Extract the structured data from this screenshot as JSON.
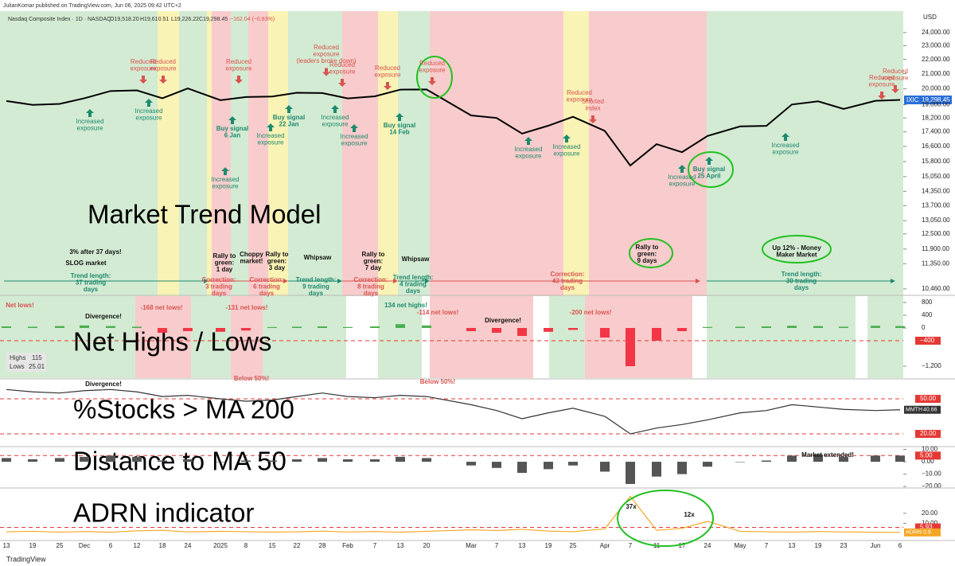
{
  "header": {
    "publisher": "JulianKomar published on TradingView.com, Jun 06, 2025 09:42 UTC+2",
    "symbol": "Nasdaq Composite Index · 1D · NASDAQ",
    "open": "O19,518.20",
    "high": "H19,610.51",
    "low": "L19,226.22",
    "close": "C19,298.45",
    "change": "−162.04 (−0.83%)",
    "currency": "USD",
    "ticker": "IXIC",
    "last": "19,298.45"
  },
  "footer": "TradingView",
  "highs_lows_box": {
    "highs_label": "Highs",
    "highs": "115",
    "lows_label": "Lows",
    "lows": "25.01"
  },
  "chart_data": [
    {
      "type": "line",
      "title": "Market Trend Model",
      "color": "#000000",
      "log_scale": true,
      "categories": [
        "13",
        "19",
        "25",
        "Dec",
        "6",
        "12",
        "18",
        "24",
        "2025",
        "8",
        "15",
        "22",
        "28",
        "Feb",
        "7",
        "13",
        "20",
        "Mar",
        "7",
        "13",
        "19",
        "25",
        "Apr",
        "7",
        "11",
        "17",
        "24",
        "May",
        "7",
        "13",
        "19",
        "23",
        "Jun",
        "6"
      ],
      "values": [
        19230,
        18990,
        19050,
        19400,
        19860,
        19900,
        19400,
        20030,
        19280,
        19480,
        19510,
        19750,
        19730,
        19390,
        19520,
        19950,
        19960,
        18350,
        18200,
        17300,
        17750,
        18270,
        17450,
        15600,
        16720,
        16290,
        17170,
        17710,
        17740,
        19010,
        19210,
        18740,
        19240,
        19298
      ],
      "ylim": [
        10270,
        25660
      ],
      "yticks": [
        {
          "value": 24000,
          "label": "24,000.00"
        },
        {
          "value": 23000,
          "label": "23,000.00"
        },
        {
          "value": 22000,
          "label": "22,000.00"
        },
        {
          "value": 21000,
          "label": "21,000.00"
        },
        {
          "value": 20000,
          "label": "20,000.00"
        },
        {
          "value": 19000,
          "label": "19,000.00"
        },
        {
          "value": 18200,
          "label": "18,200.00"
        },
        {
          "value": 17400,
          "label": "17,400.00"
        },
        {
          "value": 16600,
          "label": "16,600.00"
        },
        {
          "value": 15800,
          "label": "15,800.00"
        },
        {
          "value": 15050,
          "label": "15,050.00"
        },
        {
          "value": 14350,
          "label": "14,350.00"
        },
        {
          "value": 13700,
          "label": "13,700.00"
        },
        {
          "value": 13050,
          "label": "13,050.00"
        },
        {
          "value": 12500,
          "label": "12,500.00"
        },
        {
          "value": 11900,
          "label": "11,900.00"
        },
        {
          "value": 11350,
          "label": "11,350.00"
        },
        {
          "value": 10460,
          "label": "10,460.00"
        }
      ]
    },
    {
      "type": "bar",
      "title": "Net Highs / Lows",
      "color": "#4caf50",
      "negative_color": "#f23645",
      "values": [
        50,
        40,
        60,
        80,
        60,
        40,
        -150,
        -100,
        -120,
        -80,
        30,
        40,
        50,
        30,
        50,
        120,
        80,
        -100,
        -150,
        -250,
        -120,
        -60,
        -300,
        -1200,
        -400,
        -100,
        30,
        40,
        50,
        70,
        60,
        40,
        70,
        60
      ],
      "ylim": [
        -1575,
        975
      ],
      "yticks": [
        800,
        400,
        0,
        {
          "value": -1200,
          "label": "−1,200"
        }
      ],
      "thresholds": [
        {
          "value": -400,
          "label": "−400"
        }
      ]
    },
    {
      "type": "line",
      "title": "%Stocks > MA 200",
      "series": [
        {
          "name": "MMTH",
          "color": "#333333",
          "values": [
            58,
            56,
            55,
            57,
            58,
            56,
            52,
            53,
            50,
            48,
            49,
            52,
            55,
            52,
            51,
            53,
            52,
            45,
            40,
            33,
            38,
            42,
            35,
            20,
            25,
            28,
            32,
            38,
            40,
            45,
            43,
            41,
            40,
            40.66
          ]
        }
      ],
      "ylim": [
        9.8,
        65.7
      ],
      "yticks": [],
      "thresholds": [
        {
          "value": 50,
          "label": "50.00"
        },
        {
          "value": 20,
          "label": "20.00"
        }
      ]
    },
    {
      "type": "bar",
      "title": "Distance to MA 50",
      "color": "#555555",
      "negative_color": "#555555",
      "values": [
        3,
        2,
        3,
        4,
        5,
        4,
        1,
        2,
        0,
        1,
        1,
        2,
        3,
        2,
        2,
        4,
        3,
        -3,
        -5,
        -9,
        -6,
        -3,
        -8,
        -18,
        -12,
        -10,
        -4,
        0,
        1,
        5,
        6,
        4,
        5,
        5
      ],
      "ylim": [
        -20.6,
        11
      ],
      "yticks": [
        {
          "value": 10,
          "label": "10.00"
        },
        {
          "value": 0,
          "label": "0.00"
        },
        {
          "value": -10,
          "label": "−10.00"
        },
        {
          "value": -20,
          "label": "−20.00"
        }
      ],
      "thresholds": [
        {
          "value": 5,
          "label": "5.00"
        }
      ]
    },
    {
      "type": "line",
      "title": "ADRN indicator",
      "series": [
        {
          "name": "ADRN",
          "color": "#f5a623",
          "values": [
            1.5,
            2,
            1.2,
            1.8,
            1.1,
            2.5,
            3,
            1.4,
            2,
            1.6,
            1.2,
            1.5,
            2.2,
            1.3,
            1.8,
            1.1,
            2,
            3.5,
            2.8,
            4,
            2.2,
            1.6,
            4.5,
            37,
            3,
            5,
            12,
            2,
            1.5,
            1.2,
            1.8,
            1.4,
            1.1,
            0.9
          ]
        }
      ],
      "ylim": [
        -6.4,
        43.7
      ],
      "yticks": [
        {
          "value": 20,
          "label": "20.00"
        },
        {
          "value": 10,
          "label": "10.00"
        }
      ],
      "thresholds": [
        {
          "value": 5.93,
          "label": "5.93"
        }
      ]
    }
  ],
  "annotations": [
    {
      "text": [
        "Reduced",
        "exposure"
      ],
      "color": "#d9534f"
    },
    {
      "text": [
        "Reduced",
        "exposure"
      ],
      "color": "#d9534f"
    },
    {
      "text": [
        "Reduced",
        "exposure"
      ],
      "color": "#d9534f"
    },
    {
      "text": [
        "Reduced",
        "exposure",
        "(leaders broke down)"
      ],
      "color": "#d9534f"
    },
    {
      "text": [
        "Reduced",
        "exposure"
      ],
      "color": "#d9534f"
    },
    {
      "text": [
        "Reduced",
        "exposure"
      ],
      "color": "#d9534f"
    },
    {
      "text": [
        "Reduced",
        "exposure"
      ],
      "color": "#d9534f"
    },
    {
      "text": [
        "Reduced",
        "exposure"
      ],
      "color": "#d9534f"
    },
    {
      "text": [
        "Shorted",
        "index"
      ],
      "color": "#d9534f"
    },
    {
      "text": [
        "Reduced",
        "exposure"
      ],
      "color": "#d9534f"
    },
    {
      "text": [
        "Reduced",
        "exposure"
      ],
      "color": "#d9534f"
    },
    {
      "text": [
        "Increased",
        "exposure"
      ],
      "color": "#1e8a6e"
    },
    {
      "text": [
        "Increased",
        "exposure"
      ],
      "color": "#1e8a6e"
    },
    {
      "text": [
        "Buy signal",
        "6 Jan"
      ],
      "color": "#1e8a6e"
    },
    {
      "text": [
        "Increased",
        "exposure"
      ],
      "color": "#1e8a6e"
    },
    {
      "text": [
        "Buy signal",
        "22 Jan"
      ],
      "color": "#1e8a6e"
    },
    {
      "text": [
        "Increased",
        "exposure"
      ],
      "color": "#1e8a6e"
    },
    {
      "text": [
        "Increased",
        "exposure"
      ],
      "color": "#1e8a6e"
    },
    {
      "text": [
        "Increased",
        "exposure"
      ],
      "color": "#1e8a6e"
    },
    {
      "text": [
        "Buy signal",
        "14 Feb"
      ],
      "color": "#1e8a6e"
    },
    {
      "text": [
        "Increased",
        "exposure"
      ],
      "color": "#1e8a6e"
    },
    {
      "text": [
        "Increased",
        "exposure"
      ],
      "color": "#1e8a6e"
    },
    {
      "text": [
        "Increased",
        "exposure"
      ],
      "color": "#1e8a6e"
    },
    {
      "text": [
        "Buy signal",
        "25 April"
      ],
      "color": "#1e8a6e"
    },
    {
      "text": [
        "Increased",
        "exposure"
      ],
      "color": "#1e8a6e"
    },
    {
      "text": [
        "3% after 37 days!"
      ],
      "color": "#111111"
    },
    {
      "text": [
        "SLOG market"
      ],
      "color": "#111111"
    },
    {
      "text": [
        "Rally to",
        "green:",
        "1 day"
      ],
      "color": "#111111"
    },
    {
      "text": [
        "Choppy",
        "market!"
      ],
      "color": "#111111"
    },
    {
      "text": [
        "Rally to",
        "green:",
        "3 day"
      ],
      "color": "#111111"
    },
    {
      "text": [
        "Whipsaw"
      ],
      "color": "#111111"
    },
    {
      "text": [
        "Rally to",
        "green:",
        "7 day"
      ],
      "color": "#111111"
    },
    {
      "text": [
        "Whipsaw"
      ],
      "color": "#111111"
    },
    {
      "text": [
        "Rally to",
        "green:",
        "9 days"
      ],
      "color": "#111111"
    },
    {
      "text": [
        "Up 12% - Money",
        "Maker Market"
      ],
      "color": "#111111"
    },
    {
      "text": [
        "Trend length:",
        "37 trading",
        "days"
      ],
      "color": "#1e8a6e"
    },
    {
      "text": [
        "Correction:",
        "3 trading",
        "days"
      ],
      "color": "#d9534f"
    },
    {
      "text": [
        "Correction:",
        "6 trading",
        "days"
      ],
      "color": "#d9534f"
    },
    {
      "text": [
        "Trend length:",
        "9 trading",
        "days"
      ],
      "color": "#1e8a6e"
    },
    {
      "text": [
        "Correction:",
        "8 trading",
        "days"
      ],
      "color": "#d9534f"
    },
    {
      "text": [
        "Trend length:",
        "4 trading",
        "days"
      ],
      "color": "#1e8a6e"
    },
    {
      "text": [
        "Correction:",
        "43 trading",
        "days"
      ],
      "color": "#d9534f"
    },
    {
      "text": [
        "Trend length:",
        "30 trading",
        "days"
      ],
      "color": "#1e8a6e"
    },
    {
      "text": [
        "Net lows!"
      ],
      "color": "#d9534f"
    },
    {
      "text": [
        "-168 net lows!"
      ],
      "color": "#d9534f"
    },
    {
      "text": [
        "-131 net lows!"
      ],
      "color": "#d9534f"
    },
    {
      "text": [
        "134 net highs!"
      ],
      "color": "#1e8a6e"
    },
    {
      "text": [
        "-114 net lows!"
      ],
      "color": "#d9534f"
    },
    {
      "text": [
        "Divergence!"
      ],
      "color": "#111111"
    },
    {
      "text": [
        "Divergence!"
      ],
      "color": "#111111"
    },
    {
      "text": [
        "-200 net lows!"
      ],
      "color": "#d9534f"
    },
    {
      "text": [
        "Divergence!"
      ],
      "color": "#111111"
    },
    {
      "text": [
        "Below 50%!"
      ],
      "color": "#d9534f"
    },
    {
      "text": [
        "Below 50%!"
      ],
      "color": "#d9534f"
    },
    {
      "text": [
        "Market extended!"
      ],
      "color": "#111111"
    },
    {
      "text": [
        "37x"
      ],
      "color": "#111111"
    },
    {
      "text": [
        "12x"
      ],
      "color": "#111111"
    }
  ]
}
